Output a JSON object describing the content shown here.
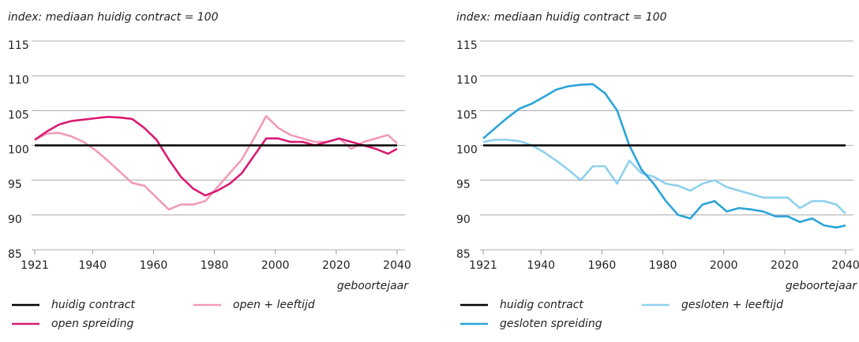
{
  "chart_data": [
    {
      "type": "line",
      "subtitle": "index: mediaan huidig contract = 100",
      "x_label": "geboortejaar",
      "x": [
        1921,
        1925,
        1929,
        1933,
        1937,
        1941,
        1945,
        1949,
        1953,
        1957,
        1961,
        1965,
        1969,
        1973,
        1977,
        1981,
        1985,
        1989,
        1993,
        1997,
        2001,
        2005,
        2009,
        2013,
        2017,
        2021,
        2025,
        2029,
        2033,
        2037,
        2040
      ],
      "xlim": [
        1921,
        2040
      ],
      "xticks": [
        1921,
        1940,
        1960,
        1980,
        2000,
        2020,
        2040
      ],
      "ylim": [
        85,
        115
      ],
      "yticks": [
        85,
        90,
        95,
        100,
        105,
        110,
        115
      ],
      "grid": true,
      "series": [
        {
          "name": "huidig contract",
          "color": "#000000",
          "values": [
            100,
            100,
            100,
            100,
            100,
            100,
            100,
            100,
            100,
            100,
            100,
            100,
            100,
            100,
            100,
            100,
            100,
            100,
            100,
            100,
            100,
            100,
            100,
            100,
            100,
            100,
            100,
            100,
            100,
            100,
            100
          ]
        },
        {
          "name": "open spreiding",
          "color": "#d81b73",
          "values": [
            100.8,
            102,
            103,
            103.5,
            103.7,
            103.9,
            104.1,
            104,
            103.8,
            102.5,
            100.8,
            98,
            95.5,
            93.8,
            92.8,
            93.5,
            94.5,
            96,
            98.5,
            101,
            101,
            100.5,
            100.5,
            100,
            100.5,
            101,
            100.5,
            100,
            99.5,
            98.8,
            99.5
          ]
        },
        {
          "name": "open + leeftijd",
          "color": "#f29ab8",
          "values": [
            100.8,
            101.7,
            101.8,
            101.3,
            100.5,
            99.3,
            97.8,
            96.2,
            94.6,
            94.2,
            92.5,
            90.8,
            91.5,
            91.5,
            92,
            94,
            96,
            98,
            101,
            104.2,
            102.5,
            101.5,
            101,
            100.5,
            100.5,
            101,
            99.5,
            100.5,
            101,
            101.5,
            100.3
          ]
        }
      ]
    },
    {
      "type": "line",
      "subtitle": "index: mediaan huidig contract = 100",
      "x_label": "geboortejaar",
      "x": [
        1921,
        1925,
        1929,
        1933,
        1937,
        1941,
        1945,
        1949,
        1953,
        1957,
        1961,
        1965,
        1969,
        1973,
        1977,
        1981,
        1985,
        1989,
        1993,
        1997,
        2001,
        2005,
        2009,
        2013,
        2017,
        2021,
        2025,
        2029,
        2033,
        2037,
        2040
      ],
      "xlim": [
        1921,
        2040
      ],
      "xticks": [
        1921,
        1940,
        1960,
        1980,
        2000,
        2020,
        2040
      ],
      "ylim": [
        85,
        115
      ],
      "yticks": [
        85,
        90,
        95,
        100,
        105,
        110,
        115
      ],
      "grid": true,
      "series": [
        {
          "name": "huidig contract",
          "color": "#000000",
          "values": [
            100,
            100,
            100,
            100,
            100,
            100,
            100,
            100,
            100,
            100,
            100,
            100,
            100,
            100,
            100,
            100,
            100,
            100,
            100,
            100,
            100,
            100,
            100,
            100,
            100,
            100,
            100,
            100,
            100,
            100,
            100
          ]
        },
        {
          "name": "gesloten spreiding",
          "color": "#2aa4d8",
          "values": [
            101,
            102.5,
            104,
            105.3,
            106,
            107,
            108,
            108.5,
            108.7,
            108.8,
            107.5,
            105,
            100,
            96.5,
            94.5,
            92,
            90,
            89.5,
            91.5,
            92,
            90.5,
            91,
            90.8,
            90.5,
            89.8,
            89.8,
            89,
            89.5,
            88.5,
            88.2,
            88.5
          ]
        },
        {
          "name": "gesloten + leeftijd",
          "color": "#8fd0ee",
          "values": [
            100.5,
            100.8,
            100.8,
            100.6,
            100,
            99,
            97.8,
            96.5,
            95,
            97,
            97,
            94.5,
            97.8,
            96,
            95.5,
            94.5,
            94.2,
            93.5,
            94.5,
            95,
            94,
            93.5,
            93,
            92.5,
            92.5,
            92.5,
            91,
            92,
            92,
            91.5,
            90.2
          ]
        }
      ]
    }
  ]
}
